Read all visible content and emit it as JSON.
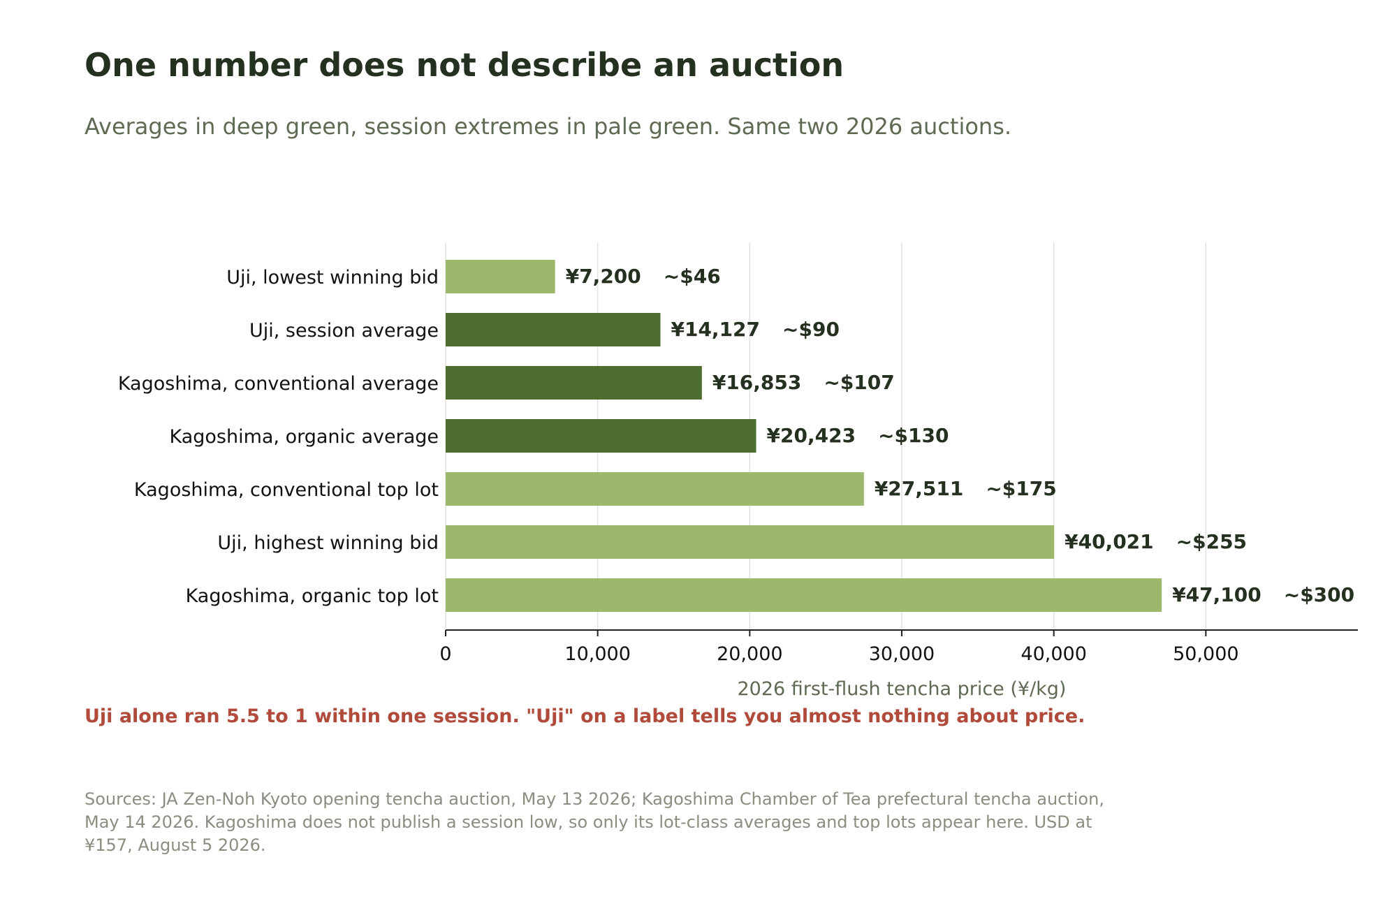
{
  "header": {
    "title": "One number does not describe an auction",
    "subtitle": "Averages in deep green, session extremes in pale green. Same two 2026 auctions."
  },
  "chart_data": {
    "type": "bar",
    "orientation": "horizontal",
    "categories": [
      "Uji, lowest winning bid",
      "Uji, session average",
      "Kagoshima, conventional average",
      "Kagoshima, organic average",
      "Kagoshima, conventional top lot",
      "Uji, highest winning bid",
      "Kagoshima, organic top lot"
    ],
    "values": [
      7200,
      14127,
      16853,
      20423,
      27511,
      40021,
      47100
    ],
    "value_labels": [
      "¥7,200",
      "¥14,127",
      "¥16,853",
      "¥20,423",
      "¥27,511",
      "¥40,021",
      "¥47,100"
    ],
    "usd_labels": [
      "~$46",
      "~$90",
      "~$107",
      "~$130",
      "~$175",
      "~$255",
      "~$300"
    ],
    "kinds": [
      "extreme",
      "average",
      "average",
      "average",
      "extreme",
      "extreme",
      "extreme"
    ],
    "colors": {
      "average": "#4d6e2e",
      "extreme": "#9db86d"
    },
    "xlabel": "2026 first-flush tencha price (¥/kg)",
    "xlim": [
      0,
      60000
    ],
    "xticks": [
      0,
      10000,
      20000,
      30000,
      40000,
      50000
    ],
    "xtick_labels": [
      "0",
      "10,000",
      "20,000",
      "30,000",
      "40,000",
      "50,000"
    ],
    "grid": "vertical"
  },
  "callout": "Uji alone ran 5.5 to 1 within one session. \"Uji\" on a label tells you almost nothing about price.",
  "sources": "Sources: JA Zen-Noh Kyoto opening tencha auction, May 13 2026; Kagoshima Chamber of Tea prefectural tencha auction, May 14 2026. Kagoshima does not publish a session low, so only its lot-class averages and top lots appear here. USD at ¥157, August 5 2026."
}
